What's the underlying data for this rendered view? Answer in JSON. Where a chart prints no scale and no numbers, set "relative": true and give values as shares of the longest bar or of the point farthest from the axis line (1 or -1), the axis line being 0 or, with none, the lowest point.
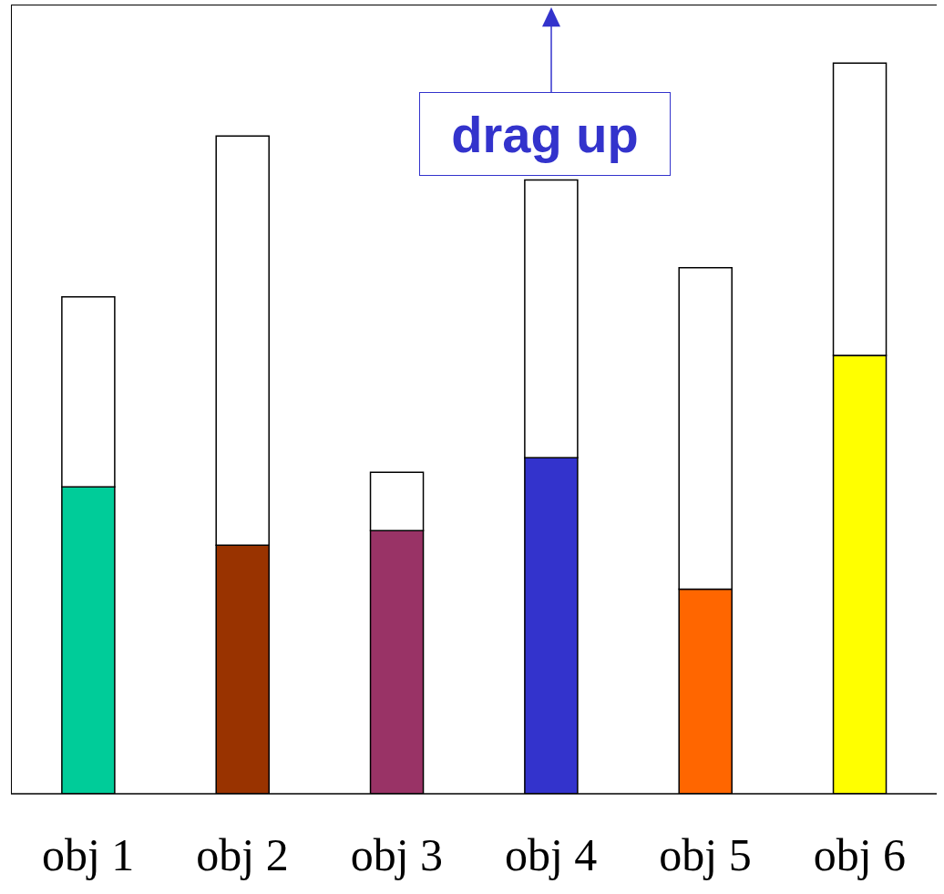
{
  "chart_data": {
    "type": "bar",
    "relative": true,
    "stacked": true,
    "categories": [
      "obj 1",
      "obj 2",
      "obj 3",
      "obj 4",
      "obj 5",
      "obj 6"
    ],
    "series": [
      {
        "colors": [
          "#00cc99",
          "#993300",
          "#993366",
          "#3333cc",
          "#ff6600",
          "#ffff00"
        ],
        "values": [
          0.42,
          0.34,
          0.36,
          0.46,
          0.28,
          0.6
        ]
      },
      {
        "color": "#ffffff",
        "values": [
          0.26,
          0.56,
          0.08,
          0.38,
          0.44,
          0.4
        ]
      }
    ],
    "annotations": [
      "drag up"
    ]
  }
}
